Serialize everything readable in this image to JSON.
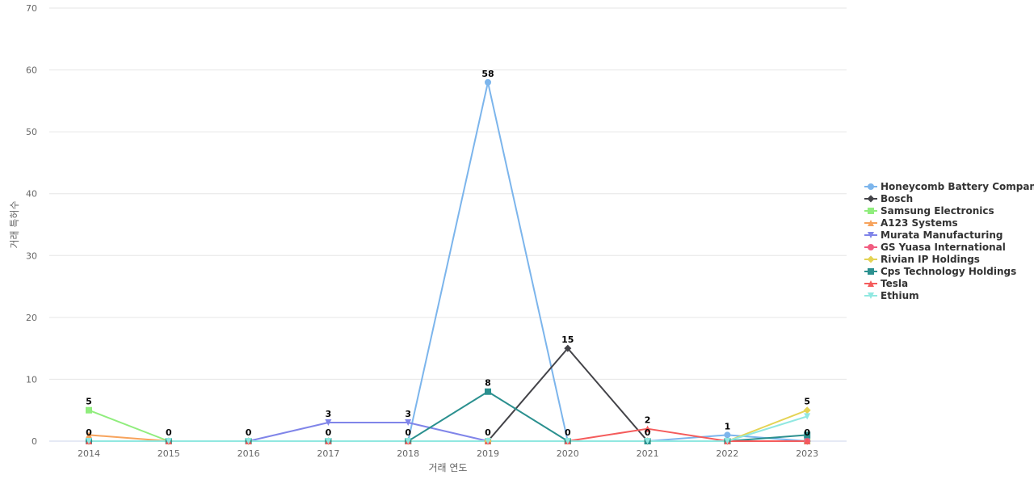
{
  "chart_data": {
    "type": "line",
    "title": "",
    "xlabel": "거래 연도",
    "ylabel": "거래 특허수",
    "ylim": [
      0,
      70
    ],
    "yticks": [
      0,
      10,
      20,
      30,
      40,
      50,
      60,
      70
    ],
    "grid": true,
    "legend_position": "right",
    "categories": [
      "2014",
      "2015",
      "2016",
      "2017",
      "2018",
      "2019",
      "2020",
      "2021",
      "2022",
      "2023"
    ],
    "series": [
      {
        "name": "Honeycomb Battery Company",
        "color": "#7cb5ec",
        "marker": "circle",
        "values": [
          0,
          0,
          0,
          0,
          0,
          58,
          0,
          0,
          1,
          0
        ]
      },
      {
        "name": "Bosch",
        "color": "#434348",
        "marker": "diamond",
        "values": [
          0,
          0,
          0,
          0,
          0,
          0,
          15,
          0,
          0,
          0
        ]
      },
      {
        "name": "Samsung Electronics",
        "color": "#90ed7d",
        "marker": "square",
        "values": [
          5,
          0,
          0,
          0,
          0,
          0,
          0,
          0,
          0,
          0
        ]
      },
      {
        "name": "A123 Systems",
        "color": "#f7a35c",
        "marker": "triangle",
        "values": [
          1,
          0,
          0,
          0,
          0,
          0,
          0,
          0,
          0,
          0
        ]
      },
      {
        "name": "Murata Manufacturing",
        "color": "#8085e9",
        "marker": "triangle-down",
        "values": [
          0,
          0,
          0,
          3,
          3,
          0,
          0,
          0,
          0,
          0
        ]
      },
      {
        "name": "GS Yuasa International",
        "color": "#f15c80",
        "marker": "circle",
        "values": [
          0,
          0,
          0,
          0,
          0,
          0,
          0,
          0,
          0,
          0
        ]
      },
      {
        "name": "Rivian IP Holdings",
        "color": "#e4d354",
        "marker": "diamond",
        "values": [
          0,
          0,
          0,
          0,
          0,
          0,
          0,
          0,
          0,
          5
        ]
      },
      {
        "name": "Cps Technology Holdings",
        "color": "#2b908f",
        "marker": "square",
        "values": [
          0,
          0,
          0,
          0,
          0,
          8,
          0,
          0,
          0,
          1
        ]
      },
      {
        "name": "Tesla",
        "color": "#f45b5b",
        "marker": "triangle",
        "values": [
          0,
          0,
          0,
          0,
          0,
          0,
          0,
          2,
          0,
          0
        ]
      },
      {
        "name": "Ethium",
        "color": "#91e8e1",
        "marker": "triangle-down",
        "values": [
          0,
          0,
          0,
          0,
          0,
          0,
          0,
          0,
          0,
          4
        ]
      }
    ],
    "data_labels": [
      {
        "category": "2014",
        "value": 5,
        "text": "5"
      },
      {
        "category": "2014",
        "value": 0,
        "text": "0"
      },
      {
        "category": "2015",
        "value": 0,
        "text": "0"
      },
      {
        "category": "2016",
        "value": 0,
        "text": "0"
      },
      {
        "category": "2017",
        "value": 3,
        "text": "3"
      },
      {
        "category": "2017",
        "value": 0,
        "text": "0"
      },
      {
        "category": "2018",
        "value": 3,
        "text": "3"
      },
      {
        "category": "2018",
        "value": 0,
        "text": "0"
      },
      {
        "category": "2019",
        "value": 58,
        "text": "58"
      },
      {
        "category": "2019",
        "value": 8,
        "text": "8"
      },
      {
        "category": "2019",
        "value": 0,
        "text": "0"
      },
      {
        "category": "2020",
        "value": 15,
        "text": "15"
      },
      {
        "category": "2020",
        "value": 0,
        "text": "0"
      },
      {
        "category": "2021",
        "value": 2,
        "text": "2"
      },
      {
        "category": "2021",
        "value": 0,
        "text": "0"
      },
      {
        "category": "2022",
        "value": 1,
        "text": "1"
      },
      {
        "category": "2023",
        "value": 5,
        "text": "5"
      },
      {
        "category": "2023",
        "value": 0,
        "text": "0"
      }
    ]
  }
}
